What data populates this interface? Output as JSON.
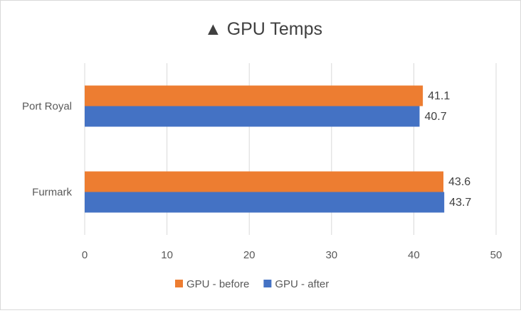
{
  "chart_data": {
    "type": "bar",
    "orientation": "horizontal",
    "title": "▲ GPU Temps",
    "categories": [
      "Port Royal",
      "Furmark"
    ],
    "series": [
      {
        "name": "GPU - before",
        "values": [
          41.1,
          43.6
        ],
        "color": "#ED7D31"
      },
      {
        "name": "GPU - after",
        "values": [
          40.7,
          43.7
        ],
        "color": "#4472C4"
      }
    ],
    "xlim": [
      0,
      50
    ],
    "xticks": [
      0,
      10,
      20,
      30,
      40,
      50
    ],
    "grid": true,
    "data_labels": true,
    "legend_position": "bottom"
  }
}
